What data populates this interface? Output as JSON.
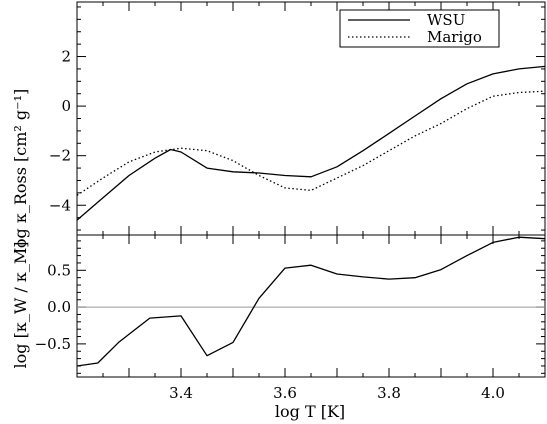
{
  "chart_data": [
    {
      "type": "line",
      "panel": "top",
      "ylabel": "log κ_Ross [cm² g⁻¹]",
      "xlim": [
        3.2,
        4.1
      ],
      "ylim": [
        -5.2,
        4.2
      ],
      "yticks": [
        -4,
        -2,
        0,
        2
      ],
      "ytick_labels": [
        "−4",
        "−2",
        "0",
        "2"
      ],
      "x_minor": 0.05,
      "y_minor": 0.5,
      "legend_position": "top-right",
      "series": [
        {
          "name": "WSU",
          "style": "solid",
          "x": [
            3.2,
            3.25,
            3.3,
            3.35,
            3.38,
            3.4,
            3.45,
            3.5,
            3.55,
            3.6,
            3.65,
            3.7,
            3.75,
            3.8,
            3.85,
            3.9,
            3.95,
            4.0,
            4.05,
            4.1
          ],
          "y": [
            -4.6,
            -3.7,
            -2.8,
            -2.1,
            -1.75,
            -1.85,
            -2.5,
            -2.65,
            -2.7,
            -2.8,
            -2.85,
            -2.45,
            -1.8,
            -1.1,
            -0.4,
            0.3,
            0.9,
            1.3,
            1.5,
            1.6
          ]
        },
        {
          "name": "Marigo",
          "style": "dotted",
          "x": [
            3.2,
            3.25,
            3.3,
            3.35,
            3.4,
            3.45,
            3.5,
            3.55,
            3.6,
            3.65,
            3.7,
            3.75,
            3.8,
            3.85,
            3.9,
            3.95,
            4.0,
            4.05,
            4.1
          ],
          "y": [
            -3.6,
            -2.9,
            -2.25,
            -1.85,
            -1.7,
            -1.8,
            -2.2,
            -2.8,
            -3.3,
            -3.4,
            -2.9,
            -2.4,
            -1.8,
            -1.2,
            -0.7,
            -0.1,
            0.4,
            0.55,
            0.6
          ]
        }
      ]
    },
    {
      "type": "line",
      "panel": "bottom",
      "xlabel": "log T [K]",
      "ylabel": "log [κ_W / κ_M]",
      "xlim": [
        3.2,
        4.1
      ],
      "ylim": [
        -0.95,
        0.98
      ],
      "xticks": [
        3.4,
        3.6,
        3.8,
        4.0
      ],
      "xtick_labels": [
        "3.4",
        "3.6",
        "3.8",
        "4.0"
      ],
      "yticks": [
        -0.5,
        0.0,
        0.5
      ],
      "ytick_labels": [
        "−0.5",
        "0.0",
        "0.5"
      ],
      "x_minor": 0.05,
      "y_minor": 0.1,
      "reference_line": 0,
      "series": [
        {
          "style": "solid",
          "x": [
            3.2,
            3.24,
            3.28,
            3.34,
            3.4,
            3.45,
            3.5,
            3.55,
            3.6,
            3.65,
            3.7,
            3.75,
            3.8,
            3.85,
            3.9,
            3.95,
            4.0,
            4.05,
            4.1
          ],
          "y": [
            -0.8,
            -0.76,
            -0.48,
            -0.15,
            -0.12,
            -0.66,
            -0.48,
            0.12,
            0.53,
            0.57,
            0.45,
            0.41,
            0.38,
            0.4,
            0.51,
            0.7,
            0.88,
            0.95,
            0.93
          ]
        }
      ]
    }
  ]
}
